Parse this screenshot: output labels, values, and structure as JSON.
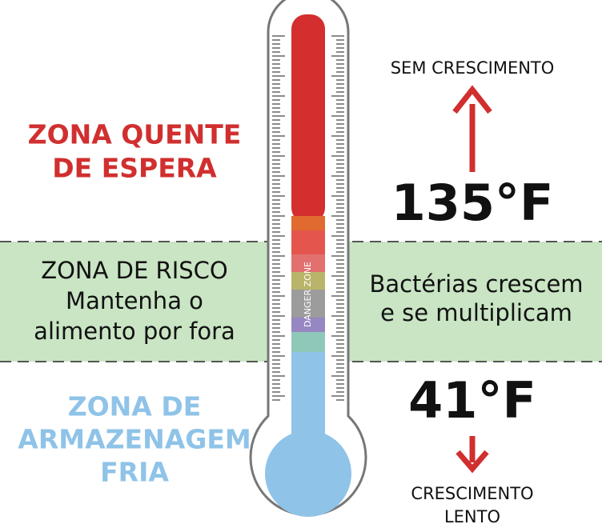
{
  "hot_zone": {
    "lines": [
      "ZONA QUENTE",
      "DE ESPERA"
    ]
  },
  "danger_zone": {
    "lines": [
      "ZONA DE RISCO",
      "Mantenha o",
      "alimento por fora"
    ]
  },
  "cold_zone": {
    "lines": [
      "ZONA DE",
      "ARMAZENAGEM",
      "FRIA"
    ]
  },
  "thermometer_label": "DANGER ZONE",
  "top_label": "SEM CRESCIMENTO",
  "upper_temp": "135°F",
  "bacteria": {
    "lines": [
      "Bactérias crescem",
      "e se multiplicam"
    ]
  },
  "lower_temp": "41°F",
  "bottom_label": {
    "lines": [
      "CRESCIMENTO",
      "LENTO"
    ]
  }
}
